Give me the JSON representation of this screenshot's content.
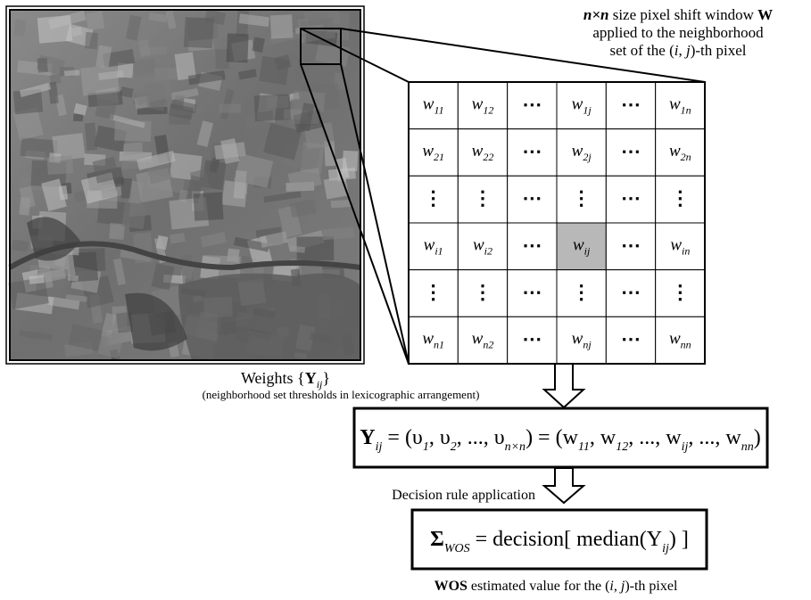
{
  "caption_top": {
    "line1": [
      "n×n",
      " size pixel shift window ",
      "W"
    ],
    "line2": "applied to the neighborhood",
    "line3": [
      "set of the (",
      "i",
      ", ",
      "j",
      ")-th pixel"
    ]
  },
  "window": {
    "rows": [
      [
        {
          "base": "w",
          "sub": "11"
        },
        {
          "base": "w",
          "sub": "12"
        },
        "⋯",
        {
          "base": "w",
          "sub": "1j"
        },
        "⋯",
        {
          "base": "w",
          "sub": "1n"
        }
      ],
      [
        {
          "base": "w",
          "sub": "21"
        },
        {
          "base": "w",
          "sub": "22"
        },
        "⋯",
        {
          "base": "w",
          "sub": "2j"
        },
        "⋯",
        {
          "base": "w",
          "sub": "2n"
        }
      ],
      [
        "⋮",
        "⋮",
        "⋯",
        "⋮",
        "⋯",
        "⋮"
      ],
      [
        {
          "base": "w",
          "sub": "i1"
        },
        {
          "base": "w",
          "sub": "i2"
        },
        "⋯",
        {
          "base": "w",
          "sub": "ij"
        },
        "⋯",
        {
          "base": "w",
          "sub": "in"
        }
      ],
      [
        "⋮",
        "⋮",
        "⋯",
        "⋮",
        "⋯",
        "⋮"
      ],
      [
        {
          "base": "w",
          "sub": "n1"
        },
        {
          "base": "w",
          "sub": "n2"
        },
        "⋯",
        {
          "base": "w",
          "sub": "nj"
        },
        "⋯",
        {
          "base": "w",
          "sub": "nn"
        }
      ]
    ]
  },
  "weights_label": {
    "text": "Weights {",
    "symbol": "Y",
    "sub": "ij",
    "close": "}"
  },
  "weights_note": "(neighborhood set thresholds in lexicographic arrangement)",
  "equation_1": [
    {
      "text": "Y",
      "sub": "ij"
    },
    {
      "text": " = (υ",
      "sub": "1"
    },
    {
      "text": ", υ",
      "sub": "2"
    },
    {
      "text": ", ..., υ",
      "sub": "n×n"
    },
    {
      "text": ") = (w",
      "sub": "11"
    },
    {
      "text": ", w",
      "sub": "12"
    },
    {
      "text": ", ..., w",
      "sub": "ij"
    },
    {
      "text": ", ..., w",
      "sub": "nn"
    },
    {
      "text": ")"
    }
  ],
  "decision_label": "Decision rule application",
  "equation_2": [
    {
      "text": "Σ",
      "sub": "WOS"
    },
    {
      "text": " = decision[ median(Y",
      "sub": "ij"
    },
    {
      "text": ") ]"
    }
  ],
  "result_caption": [
    "WOS",
    " estimated value for the (",
    "i",
    ", ",
    "j",
    ")-th pixel"
  ]
}
